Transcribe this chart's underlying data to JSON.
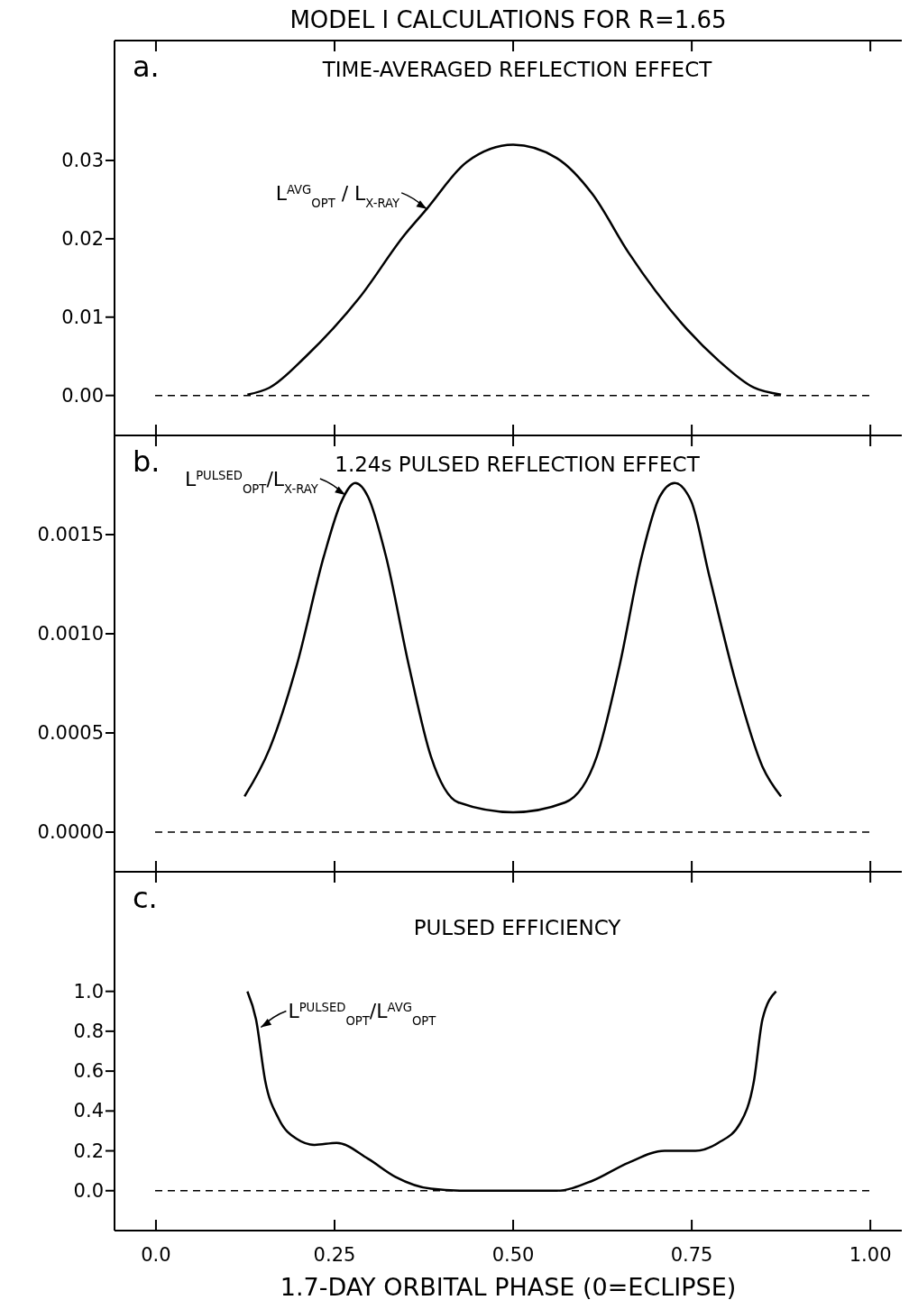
{
  "chart_data": [
    {
      "type": "line",
      "title": "MODEL I CALCULATIONS FOR R=1.65",
      "annotations": [
        "a.",
        "TIME-AVERAGED REFLECTION EFFECT",
        {
          "text": "L$^{AVG}$$_{OPT}$ / L$_{X-RAY}$",
          "x": 0.379,
          "y": 0.0238
        }
      ],
      "xlim": [
        -0.058,
        1.044
      ],
      "xticks": [
        {
          "value": 0,
          "label": null
        },
        {
          "value": 0.25,
          "label": null
        },
        {
          "value": 0.5,
          "label": null
        },
        {
          "value": 0.75,
          "label": null
        },
        {
          "value": 1,
          "label": null
        }
      ],
      "ylim": [
        -0.0051,
        0.0453
      ],
      "yticks": [
        {
          "value": 0,
          "label": "0.00"
        },
        0.01,
        0.02,
        0.03
      ],
      "tick_labels": "y",
      "ref_lines": [
        {
          "axis": "y",
          "value": 0,
          "line_style": "dashed",
          "color": "#000000"
        }
      ],
      "series": [
        {
          "color": "#000000",
          "x": [
            0.128,
            0.159,
            0.21,
            0.285,
            0.348,
            0.379,
            0.435,
            0.5,
            0.561,
            0.611,
            0.661,
            0.737,
            0.787,
            0.837,
            0.875
          ],
          "values": [
            0.0001,
            0.001,
            0.005,
            0.0125,
            0.0205,
            0.0238,
            0.0298,
            0.032,
            0.0303,
            0.0257,
            0.0183,
            0.0091,
            0.0045,
            0.001,
            0.0001
          ]
        }
      ]
    },
    {
      "type": "line",
      "annotations": [
        "b.",
        "1.24s PULSED REFLECTION EFFECT",
        {
          "text": "L$^{PULSED}$$_{OPT}$/L$_{X-RAY}$",
          "x": 0.265,
          "y": 0.0017
        }
      ],
      "xlim": [
        -0.058,
        1.044
      ],
      "xticks": [
        {
          "value": 0,
          "label": null
        },
        {
          "value": 0.25,
          "label": null
        },
        {
          "value": 0.5,
          "label": null
        },
        {
          "value": 0.75,
          "label": null
        },
        {
          "value": 1,
          "label": null
        }
      ],
      "ylim": [
        -0.0002,
        0.002
      ],
      "yticks": [
        {
          "value": 0,
          "label": "0.0000"
        },
        0.0005,
        {
          "value": 0.001,
          "label": "0.0010"
        },
        0.0015
      ],
      "tick_labels": "y",
      "ref_lines": [
        {
          "axis": "y",
          "value": 0,
          "line_style": "dashed",
          "color": "#000000"
        }
      ],
      "series": [
        {
          "color": "#000000",
          "x": [
            0.124,
            0.159,
            0.197,
            0.235,
            0.26,
            0.279,
            0.297,
            0.322,
            0.354,
            0.385,
            0.423,
            0.5,
            0.573,
            0.617,
            0.649,
            0.68,
            0.705,
            0.726,
            0.749,
            0.774,
            0.812,
            0.849,
            0.875
          ],
          "values": [
            0.00018,
            0.00042,
            0.00084,
            0.00139,
            0.00167,
            0.00176,
            0.00169,
            0.00139,
            0.00084,
            0.00038,
            0.00015,
            0.0001,
            0.00015,
            0.00038,
            0.00084,
            0.00139,
            0.00169,
            0.00176,
            0.00167,
            0.0013,
            0.00075,
            0.00033,
            0.00018
          ]
        }
      ]
    },
    {
      "type": "line",
      "xlabel": "1.7-DAY ORBITAL PHASE (0=ECLIPSE)",
      "annotations": [
        "c.",
        "PULSED EFFICIENCY",
        {
          "text": "L$^{PULSED}$$_{OPT}$/L$^{AVG}$$_{OPT}$",
          "x": 0.147,
          "y": 0.82
        }
      ],
      "xlim": [
        -0.058,
        1.044
      ],
      "xticks": [
        {
          "value": 0,
          "label": "0.0"
        },
        0.25,
        {
          "value": 0.5,
          "label": "0.50"
        },
        0.75,
        {
          "value": 1,
          "label": "1.00"
        }
      ],
      "ylim": [
        -0.2,
        1.6
      ],
      "yticks": [
        {
          "value": 0,
          "label": "0.0"
        },
        0.2,
        0.4,
        0.6,
        0.8,
        {
          "value": 1,
          "label": "1.0"
        }
      ],
      "ref_lines": [
        {
          "axis": "y",
          "value": 0,
          "line_style": "dashed",
          "color": "#000000"
        }
      ],
      "series": [
        {
          "color": "#000000",
          "x": [
            0.128,
            0.14,
            0.153,
            0.172,
            0.197,
            0.222,
            0.253,
            0.297,
            0.335,
            0.385,
            0.435,
            0.561,
            0.611,
            0.661,
            0.712,
            0.755,
            0.787,
            0.818,
            0.837,
            0.849,
            0.868
          ],
          "values": [
            1.0,
            0.86,
            0.55,
            0.36,
            0.26,
            0.23,
            0.24,
            0.16,
            0.07,
            0.01,
            0.0,
            0.0,
            0.05,
            0.14,
            0.2,
            0.2,
            0.24,
            0.34,
            0.55,
            0.86,
            1.0
          ]
        }
      ]
    }
  ]
}
